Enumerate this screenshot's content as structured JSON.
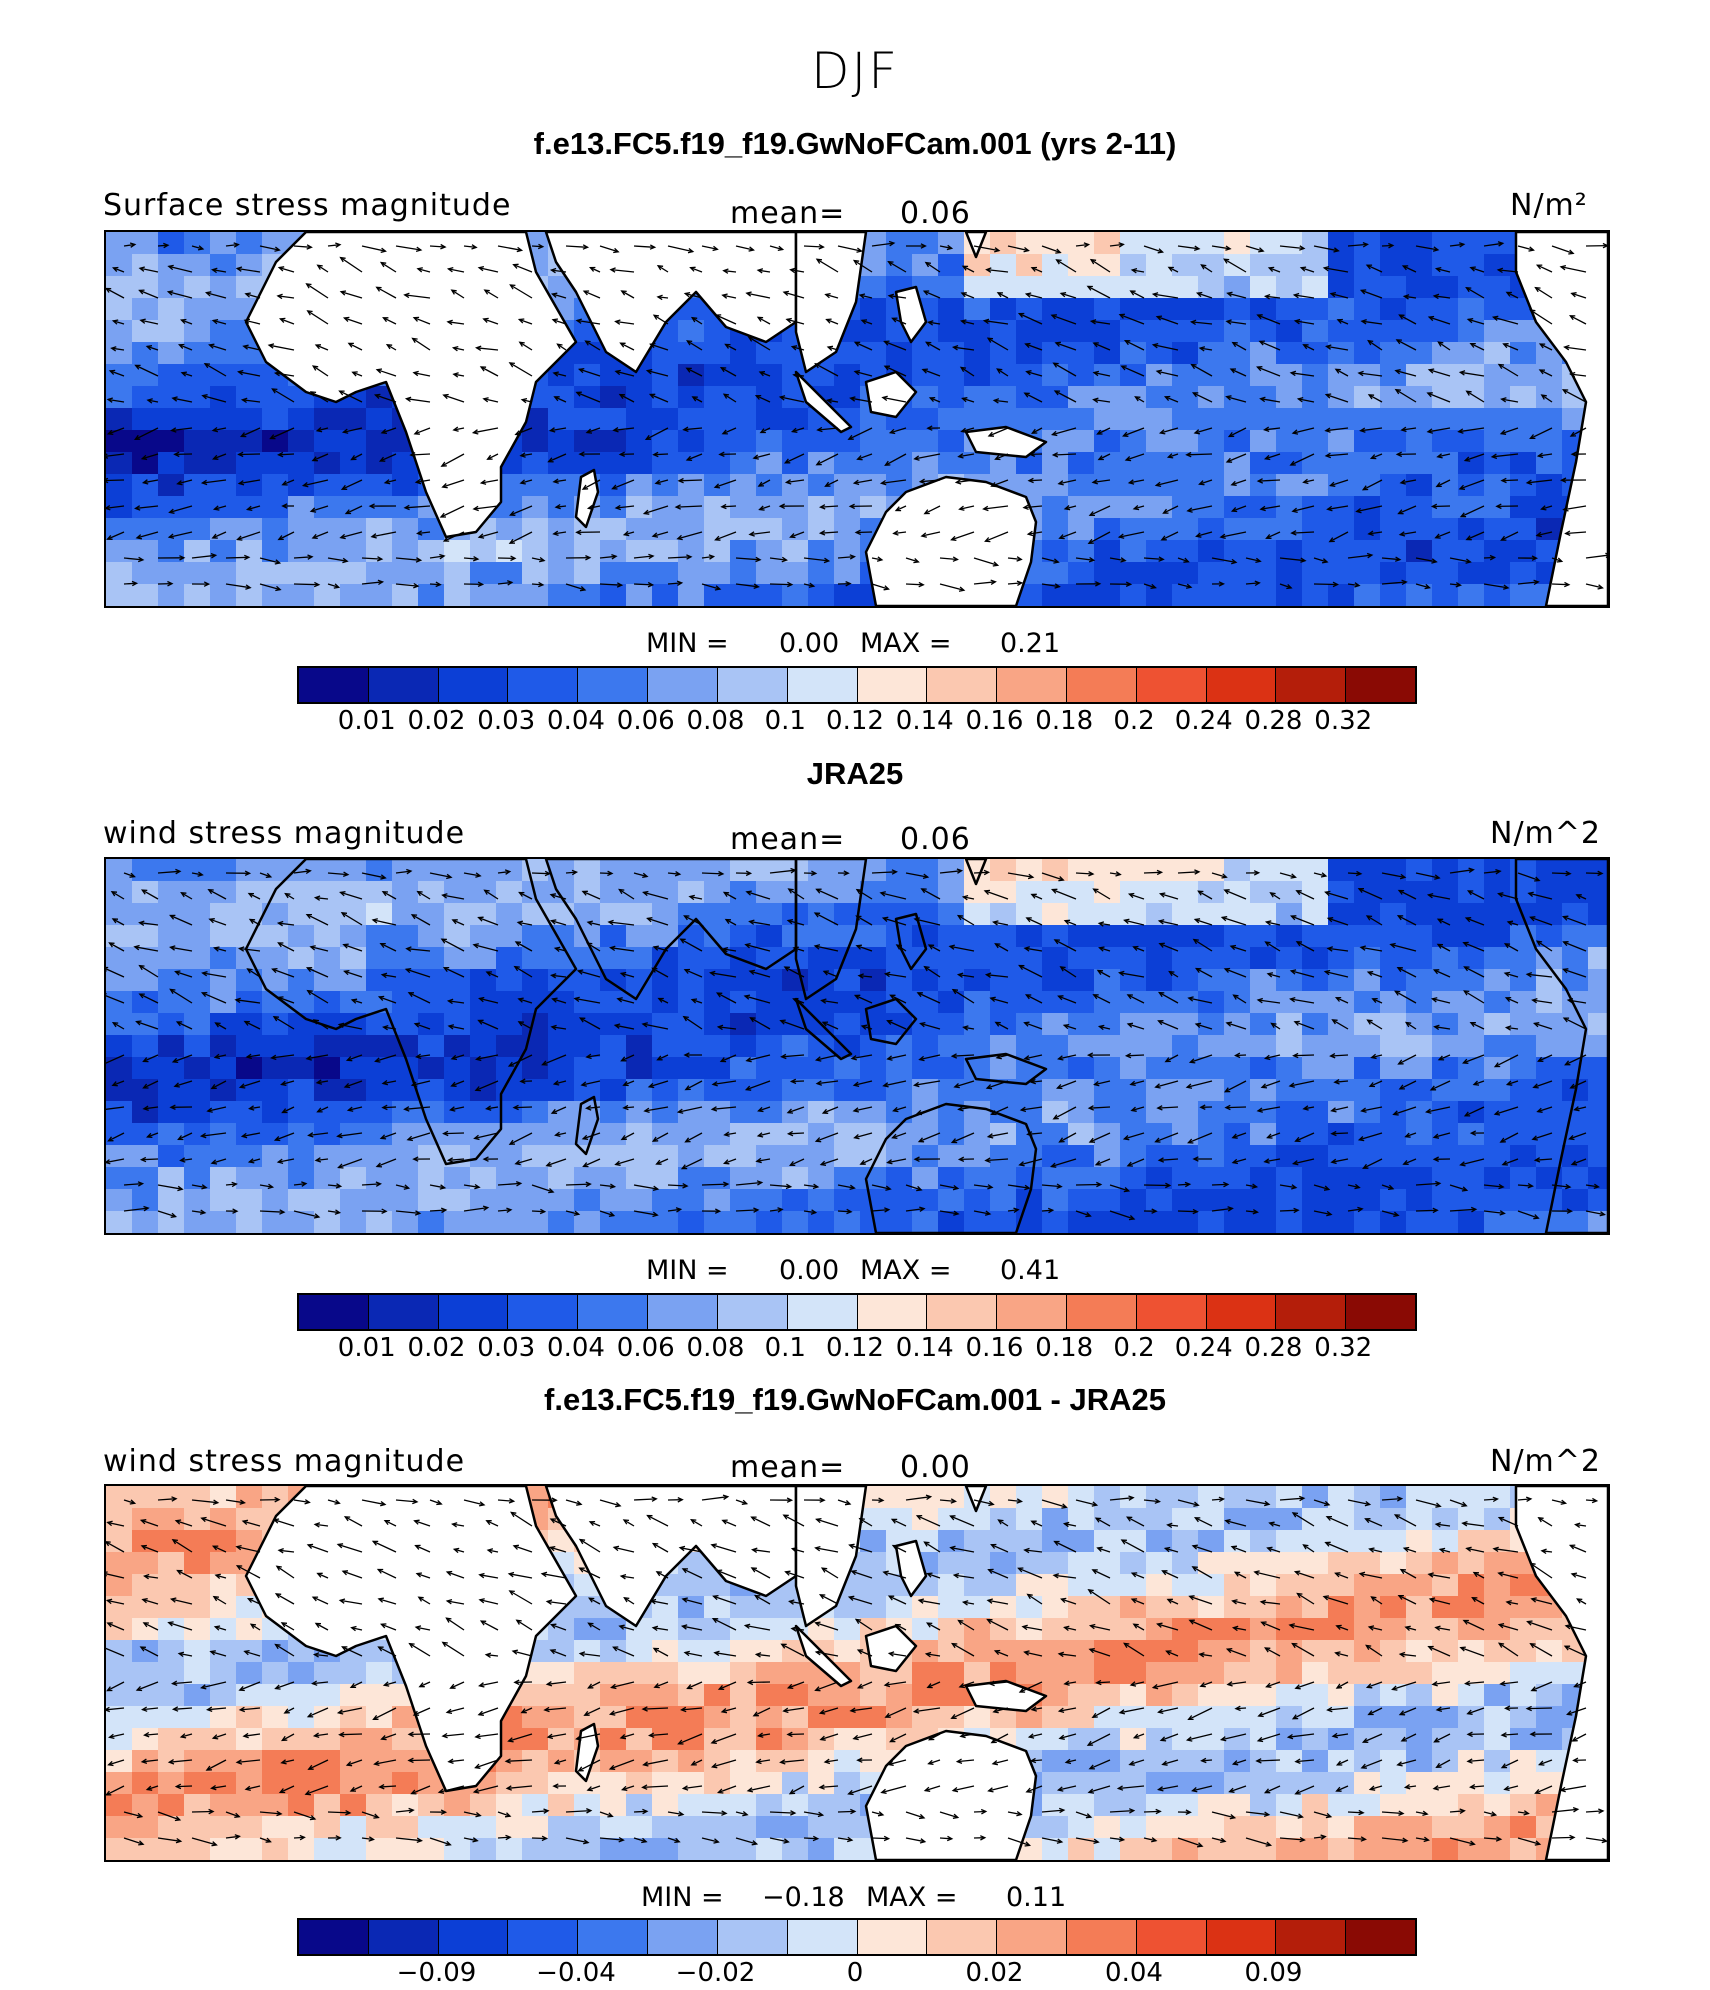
{
  "title": "DJF",
  "colors": {
    "scale": [
      "#08088a",
      "#0a28b4",
      "#0c3fd6",
      "#1f5ae8",
      "#3c78ee",
      "#7aa2f2",
      "#a9c4f5",
      "#d3e4f9",
      "#fde6d8",
      "#fbc8b0",
      "#f9a585",
      "#f47c56",
      "#ee5232",
      "#db3214",
      "#b41e0a",
      "#8a0a04"
    ],
    "land": "#ffffff",
    "coast": "#000000"
  },
  "chart_data": [
    {
      "type": "heatmap",
      "title": "f.e13.FC5.f19_f19.GwNoFCam.001 (yrs 2-11)",
      "variable": "Surface stress magnitude",
      "mean_label": "mean=",
      "mean": "0.06",
      "units": "N/m²",
      "min_label": "MIN =",
      "min": "0.00",
      "max_label": "MAX =",
      "max": "0.21",
      "colorbar_ticks": [
        "0.01",
        "0.02",
        "0.03",
        "0.04",
        "0.06",
        "0.08",
        "0.1",
        "0.12",
        "0.14",
        "0.16",
        "0.18",
        "0.2",
        "0.24",
        "0.28",
        "0.32"
      ],
      "ocean_only": true,
      "field_mean_index": 4
    },
    {
      "type": "heatmap",
      "title": "JRA25",
      "variable": "wind stress magnitude",
      "mean_label": "mean=",
      "mean": "0.06",
      "units": "N/m^2",
      "min_label": "MIN =",
      "min": "0.00",
      "max_label": "MAX =",
      "max": "0.41",
      "colorbar_ticks": [
        "0.01",
        "0.02",
        "0.03",
        "0.04",
        "0.06",
        "0.08",
        "0.1",
        "0.12",
        "0.14",
        "0.16",
        "0.18",
        "0.2",
        "0.24",
        "0.28",
        "0.32"
      ],
      "ocean_only": false,
      "field_mean_index": 4
    },
    {
      "type": "heatmap",
      "title": "f.e13.FC5.f19_f19.GwNoFCam.001 - JRA25",
      "variable": "wind stress magnitude",
      "mean_label": "mean=",
      "mean": "0.00",
      "units": "N/m^2",
      "min_label": "MIN =",
      "min": "−0.18",
      "max_label": "MAX =",
      "max": "0.11",
      "colorbar_ticks": [
        "−0.09",
        "−0.04",
        "−0.02",
        "0",
        "0.02",
        "0.04",
        "0.09"
      ],
      "colorbar_tick_positions": [
        2,
        4,
        6,
        8,
        10,
        12,
        14
      ],
      "ocean_only": true,
      "field_mean_index": 8
    }
  ]
}
